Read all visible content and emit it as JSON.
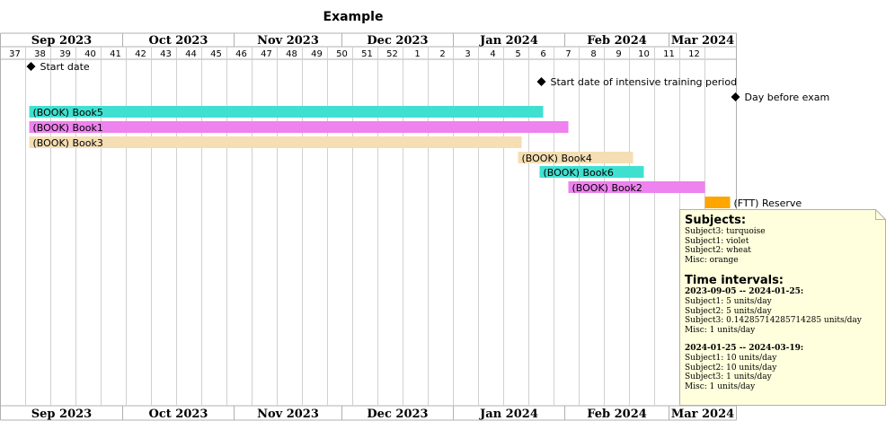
{
  "chart_data": {
    "type": "gantt",
    "title": "Example",
    "x_range": [
      "2023-08-28",
      "2024-03-19"
    ],
    "months": [
      "Sep 2023",
      "Oct 2023",
      "Nov 2023",
      "Dec 2023",
      "Jan 2024",
      "Feb 2024",
      "Mar 2024"
    ],
    "week_numbers": [
      "37",
      "38",
      "39",
      "40",
      "41",
      "42",
      "43",
      "44",
      "45",
      "46",
      "47",
      "48",
      "49",
      "50",
      "51",
      "52",
      "1",
      "2",
      "3",
      "4",
      "5",
      "6",
      "7",
      "8",
      "9",
      "10",
      "11",
      "12"
    ],
    "milestones": [
      {
        "label": "Start date",
        "date": "2023-09-05"
      },
      {
        "label": "Start date of intensive training period",
        "date": "2024-01-25"
      },
      {
        "label": "Day before exam",
        "date": "2024-03-19"
      }
    ],
    "tasks": [
      {
        "label": "(BOOK) Book5",
        "start": "2023-09-05",
        "end": "2024-01-25",
        "subject": "Subject3"
      },
      {
        "label": "(BOOK) Book1",
        "start": "2023-09-05",
        "end": "2024-02-01",
        "subject": "Subject1"
      },
      {
        "label": "(BOOK) Book3",
        "start": "2023-09-05",
        "end": "2024-01-19",
        "subject": "Subject2"
      },
      {
        "label": "(BOOK) Book4",
        "start": "2024-01-19",
        "end": "2024-02-19",
        "subject": "Subject2"
      },
      {
        "label": "(BOOK) Book6",
        "start": "2024-01-25",
        "end": "2024-02-22",
        "subject": "Subject3"
      },
      {
        "label": "(BOOK) Book2",
        "start": "2024-02-02",
        "end": "2024-03-10",
        "subject": "Subject1"
      },
      {
        "label": "(FTT) Reserve",
        "start": "2024-03-11",
        "end": "2024-03-17",
        "subject": "Misc"
      }
    ],
    "colors": {
      "Subject3": "#40e0d0",
      "Subject1": "#ee82ee",
      "Subject2": "#f5deb3",
      "Misc": "#ffa500",
      "milestone": "#000000",
      "note_fill": "#ffffdd",
      "note_border": "#b0b0b0"
    },
    "note": {
      "subjects_heading": "Subjects:",
      "subjects": [
        "Subject3: turquoise",
        "Subject1: violet",
        "Subject2: wheat",
        "Misc: orange"
      ],
      "intervals_heading": "Time intervals:",
      "intervals": [
        {
          "range": "2023-09-05 -- 2024-01-25:",
          "lines": [
            "Subject1: 5 units/day",
            "Subject2: 5 units/day",
            "Subject3: 0.14285714285714285 units/day",
            "Misc: 1 units/day"
          ]
        },
        {
          "range": "2024-01-25 -- 2024-03-19:",
          "lines": [
            "Subject1: 10 units/day",
            "Subject2: 10 units/day",
            "Subject3: 1 units/day",
            "Misc: 1 units/day"
          ]
        }
      ]
    }
  }
}
